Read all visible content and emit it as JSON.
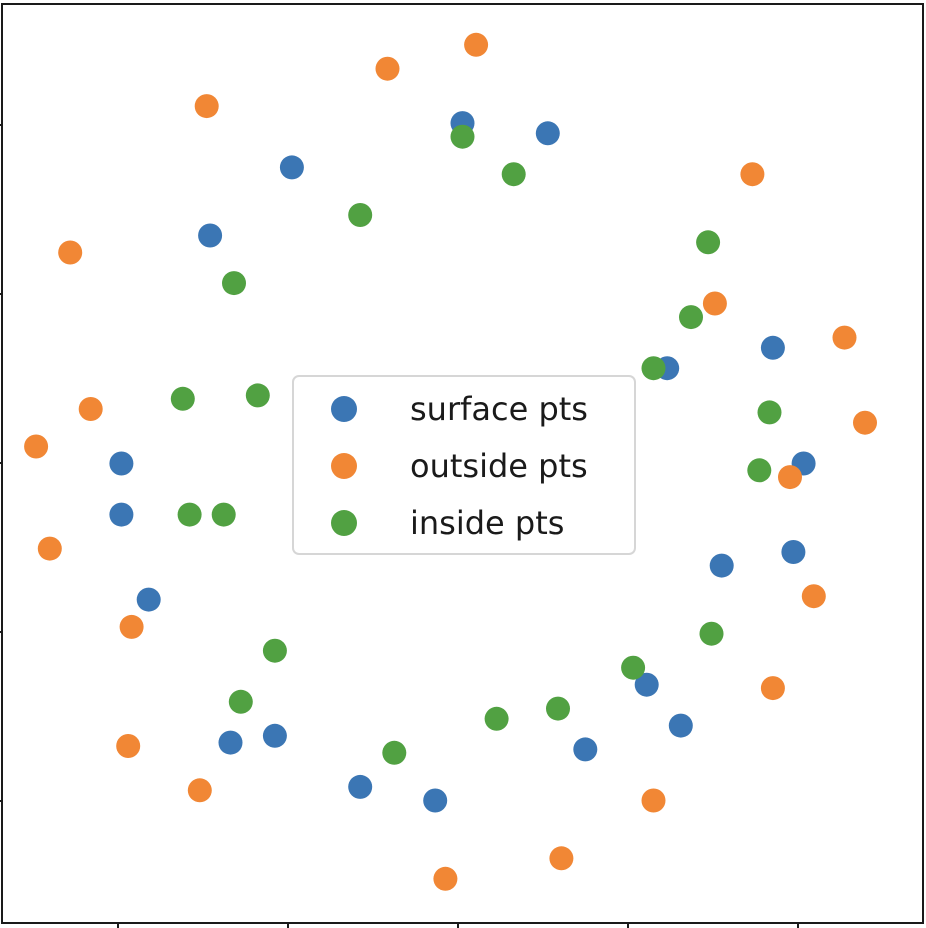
{
  "chart_data": {
    "type": "scatter",
    "title": "",
    "xlabel": "",
    "ylabel": "",
    "xlim": [
      -1.35,
      1.35
    ],
    "ylim": [
      -1.35,
      1.35
    ],
    "grid": false,
    "legend": {
      "placement": "center"
    },
    "series": [
      {
        "name": "surface pts",
        "color": "#3b76b4",
        "points": [
          [
            0.0,
            1.0
          ],
          [
            0.25,
            0.97
          ],
          [
            -0.5,
            0.87
          ],
          [
            -0.74,
            0.67
          ],
          [
            -1.0,
            0.0
          ],
          [
            0.91,
            0.34
          ],
          [
            0.97,
            -0.26
          ],
          [
            0.64,
            -0.77
          ],
          [
            -0.08,
            -0.99
          ],
          [
            -0.3,
            -0.95
          ],
          [
            -0.92,
            -0.4
          ],
          [
            -0.68,
            -0.82
          ],
          [
            0.36,
            -0.84
          ],
          [
            0.54,
            -0.65
          ],
          [
            0.6,
            0.28
          ],
          [
            1.0,
            0.0
          ],
          [
            -1.0,
            -0.15
          ],
          [
            0.76,
            -0.3
          ],
          [
            -0.55,
            -0.8
          ]
        ]
      },
      {
        "name": "outside pts",
        "color": "#f18735",
        "points": [
          [
            0.04,
            1.23
          ],
          [
            -0.22,
            1.16
          ],
          [
            -0.75,
            1.05
          ],
          [
            -1.15,
            0.62
          ],
          [
            -1.21,
            -0.25
          ],
          [
            1.12,
            0.37
          ],
          [
            1.03,
            -0.39
          ],
          [
            0.56,
            -0.99
          ],
          [
            -0.05,
            -1.22
          ],
          [
            0.29,
            -1.16
          ],
          [
            0.91,
            -0.66
          ],
          [
            -0.97,
            -0.48
          ],
          [
            0.74,
            0.47
          ],
          [
            0.96,
            -0.04
          ],
          [
            -1.09,
            0.16
          ],
          [
            1.18,
            0.12
          ],
          [
            -0.98,
            -0.83
          ],
          [
            -0.77,
            -0.96
          ],
          [
            -1.25,
            0.05
          ],
          [
            0.85,
            0.85
          ]
        ]
      },
      {
        "name": "inside pts",
        "color": "#51a142",
        "points": [
          [
            0.0,
            0.96
          ],
          [
            -0.3,
            0.73
          ],
          [
            -0.67,
            0.53
          ],
          [
            -0.82,
            0.19
          ],
          [
            -0.8,
            -0.15
          ],
          [
            0.67,
            0.43
          ],
          [
            0.87,
            -0.02
          ],
          [
            0.73,
            -0.5
          ],
          [
            0.28,
            -0.72
          ],
          [
            -0.2,
            -0.85
          ],
          [
            -0.55,
            -0.55
          ],
          [
            0.1,
            -0.75
          ],
          [
            -0.6,
            0.2
          ],
          [
            0.56,
            0.28
          ],
          [
            -0.7,
            -0.15
          ],
          [
            0.72,
            0.65
          ],
          [
            -0.65,
            -0.7
          ],
          [
            0.15,
            0.85
          ],
          [
            0.5,
            -0.6
          ],
          [
            0.9,
            0.15
          ]
        ]
      }
    ]
  }
}
